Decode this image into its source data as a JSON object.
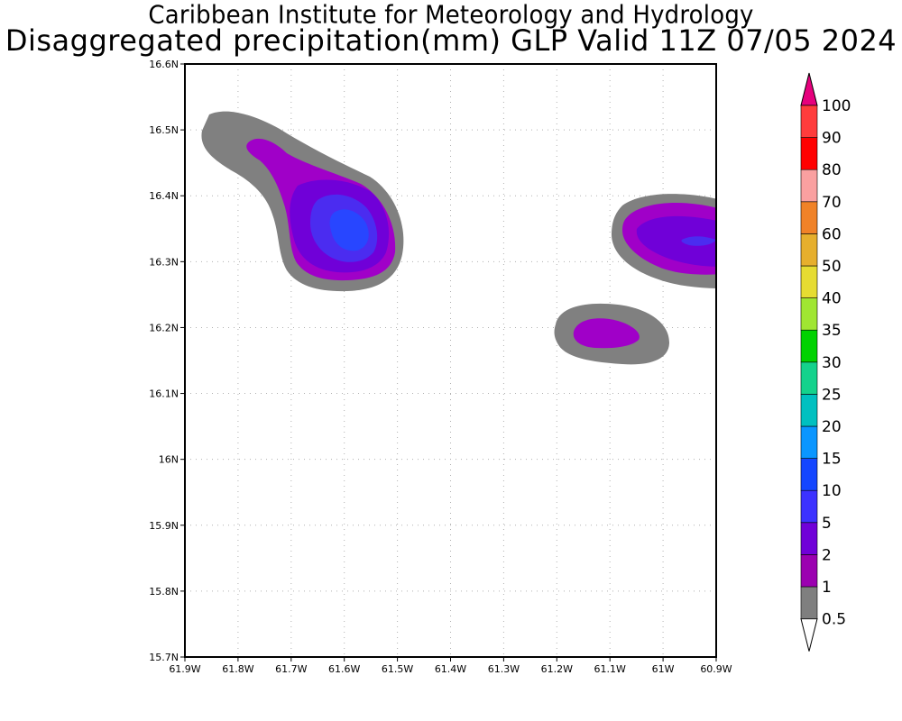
{
  "title_line1": "Caribbean Institute for Meteorology and Hydrology",
  "title_line2": "Disaggregated precipitation(mm) GLP Valid 11Z 07/05 2024",
  "map": {
    "lat_ticks": [
      "16.6N",
      "16.5N",
      "16.4N",
      "16.3N",
      "16.2N",
      "16.1N",
      "16N",
      "15.9N",
      "15.8N",
      "15.7N"
    ],
    "lon_ticks": [
      "61.9W",
      "61.8W",
      "61.7W",
      "61.6W",
      "61.5W",
      "61.4W",
      "61.3W",
      "61.2W",
      "61.1W",
      "61W",
      "60.9W"
    ],
    "lat_range": [
      15.7,
      16.6
    ],
    "lon_range": [
      -61.9,
      -60.9
    ],
    "precip_areas": [
      {
        "name": "precip-area-northwest",
        "level_max": "10-15 mm",
        "center_lon": -61.59,
        "center_lat": 16.35
      },
      {
        "name": "precip-area-south-center",
        "level_max": "1-2 mm",
        "center_lon": -61.11,
        "center_lat": 16.19
      },
      {
        "name": "precip-area-east",
        "level_max": "5-10 mm",
        "center_lon": -60.96,
        "center_lat": 16.33
      }
    ]
  },
  "colorbar": {
    "labels": [
      "0.5",
      "1",
      "2",
      "5",
      "10",
      "15",
      "20",
      "25",
      "30",
      "35",
      "40",
      "50",
      "60",
      "70",
      "80",
      "90",
      "100"
    ],
    "colors": [
      "#7f7f7f",
      "#9b00b0",
      "#7000d8",
      "#3c32ff",
      "#1446ff",
      "#0a96ff",
      "#00c0c0",
      "#14d28c",
      "#00d200",
      "#a0e632",
      "#e6dc32",
      "#e6af2d",
      "#f08228",
      "#faa0a0",
      "#ff0000",
      "#ff3c3c",
      "#e6007d"
    ],
    "top_arrow_color": "#e6007d",
    "bottom_arrow_color": "#ffffff"
  },
  "colors": {
    "grey": "#808080",
    "magenta": "#a000c8",
    "purple": "#7000d8",
    "violet": "#4b2cf0",
    "blue": "#2846ff"
  }
}
